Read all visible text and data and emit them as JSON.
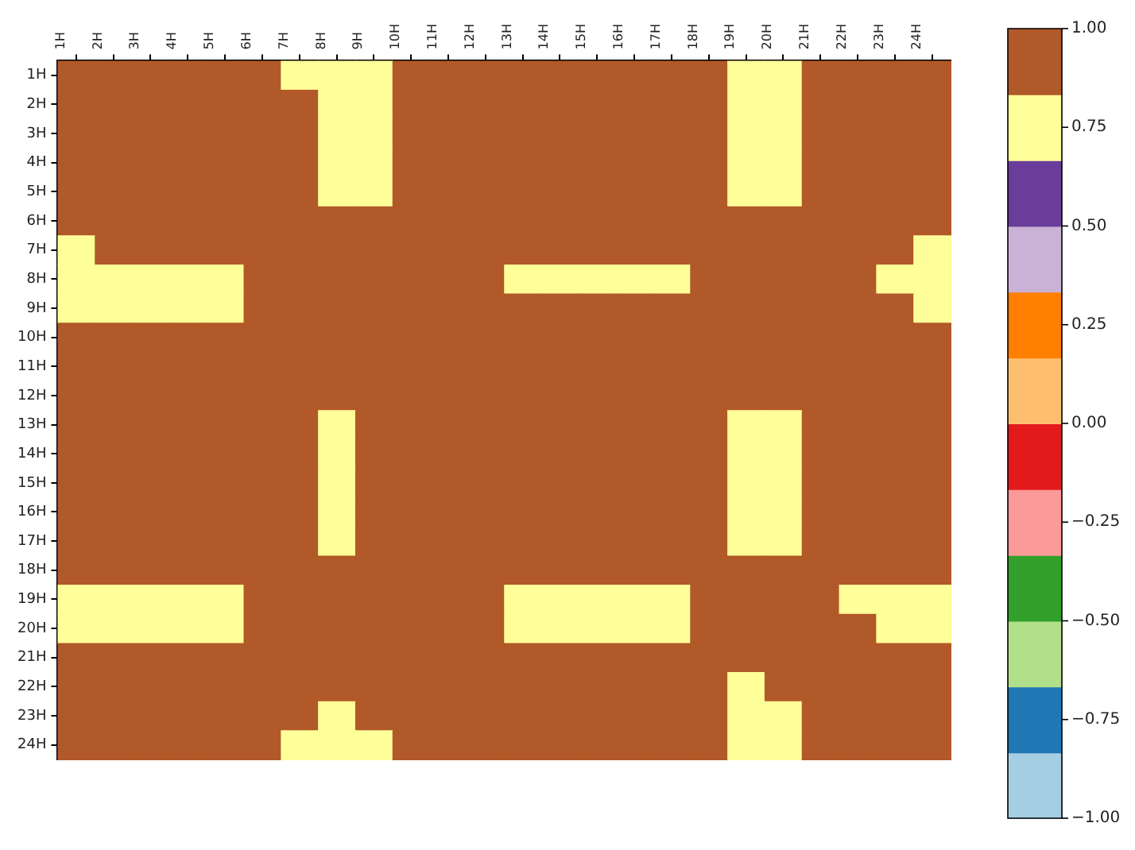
{
  "chart_data": {
    "type": "heatmap",
    "categories": [
      "1H",
      "2H",
      "3H",
      "4H",
      "5H",
      "6H",
      "7H",
      "8H",
      "9H",
      "10H",
      "11H",
      "12H",
      "13H",
      "14H",
      "15H",
      "16H",
      "17H",
      "18H",
      "19H",
      "20H",
      "21H",
      "22H",
      "23H",
      "24H"
    ],
    "y_categories": [
      "1H",
      "2H",
      "3H",
      "4H",
      "5H",
      "6H",
      "7H",
      "8H",
      "9H",
      "10H",
      "11H",
      "12H",
      "13H",
      "14H",
      "15H",
      "16H",
      "17H",
      "18H",
      "19H",
      "20H",
      "21H",
      "22H",
      "23H",
      "24H"
    ],
    "cells": [
      [
        1,
        0.9,
        0.9,
        0.9,
        0.9,
        0.9,
        0.75,
        0.75,
        0.75,
        0.9,
        0.9,
        0.9,
        0.9,
        0.9,
        0.9,
        0.9,
        0.9,
        0.9,
        0.75,
        0.75,
        0.9,
        0.9,
        0.9,
        0.9
      ],
      [
        0.9,
        1,
        0.9,
        0.9,
        0.9,
        0.9,
        0.9,
        0.75,
        0.75,
        0.9,
        0.9,
        0.9,
        0.9,
        0.9,
        0.9,
        0.9,
        0.9,
        0.9,
        0.75,
        0.75,
        0.9,
        0.9,
        0.9,
        0.9
      ],
      [
        0.9,
        0.9,
        1,
        0.9,
        0.9,
        0.9,
        0.9,
        0.75,
        0.75,
        0.9,
        0.9,
        0.9,
        0.9,
        0.9,
        0.9,
        0.9,
        0.9,
        0.9,
        0.75,
        0.75,
        0.9,
        0.9,
        0.9,
        0.9
      ],
      [
        0.9,
        0.9,
        0.9,
        1,
        0.9,
        0.9,
        0.9,
        0.75,
        0.75,
        0.9,
        0.9,
        0.9,
        0.9,
        0.9,
        0.9,
        0.9,
        0.9,
        0.9,
        0.75,
        0.75,
        0.9,
        0.9,
        0.9,
        0.9
      ],
      [
        0.9,
        0.9,
        0.9,
        0.9,
        1,
        0.9,
        0.9,
        0.75,
        0.75,
        0.9,
        0.9,
        0.9,
        0.9,
        0.9,
        0.9,
        0.9,
        0.9,
        0.9,
        0.75,
        0.75,
        0.9,
        0.9,
        0.9,
        0.9
      ],
      [
        0.9,
        0.9,
        0.9,
        0.9,
        0.9,
        1,
        0.9,
        0.9,
        0.9,
        0.9,
        0.9,
        0.9,
        0.9,
        0.9,
        0.9,
        0.9,
        0.9,
        0.9,
        0.9,
        0.9,
        0.9,
        0.9,
        0.9,
        0.9
      ],
      [
        0.75,
        0.9,
        0.9,
        0.9,
        0.9,
        0.9,
        1,
        0.9,
        0.9,
        0.9,
        0.9,
        0.9,
        0.9,
        0.9,
        0.9,
        0.9,
        0.9,
        0.9,
        0.9,
        0.9,
        0.9,
        0.9,
        0.9,
        0.75
      ],
      [
        0.75,
        0.75,
        0.75,
        0.75,
        0.75,
        0.9,
        0.9,
        1,
        0.9,
        0.9,
        0.9,
        0.9,
        0.75,
        0.75,
        0.75,
        0.75,
        0.75,
        0.9,
        0.9,
        0.9,
        0.9,
        0.9,
        0.75,
        0.75
      ],
      [
        0.75,
        0.75,
        0.75,
        0.75,
        0.75,
        0.9,
        0.9,
        0.9,
        1,
        0.9,
        0.9,
        0.9,
        0.9,
        0.9,
        0.9,
        0.9,
        0.9,
        0.9,
        0.9,
        0.9,
        0.9,
        0.9,
        0.9,
        0.75
      ],
      [
        0.9,
        0.9,
        0.9,
        0.9,
        0.9,
        0.9,
        0.9,
        0.9,
        0.9,
        1,
        0.9,
        0.9,
        0.9,
        0.9,
        0.9,
        0.9,
        0.9,
        0.9,
        0.9,
        0.9,
        0.9,
        0.9,
        0.9,
        0.9
      ],
      [
        0.9,
        0.9,
        0.9,
        0.9,
        0.9,
        0.9,
        0.9,
        0.9,
        0.9,
        0.9,
        1,
        0.9,
        0.9,
        0.9,
        0.9,
        0.9,
        0.9,
        0.9,
        0.9,
        0.9,
        0.9,
        0.9,
        0.9,
        0.9
      ],
      [
        0.9,
        0.9,
        0.9,
        0.9,
        0.9,
        0.9,
        0.9,
        0.9,
        0.9,
        0.9,
        0.9,
        1,
        0.9,
        0.9,
        0.9,
        0.9,
        0.9,
        0.9,
        0.9,
        0.9,
        0.9,
        0.9,
        0.9,
        0.9
      ],
      [
        0.9,
        0.9,
        0.9,
        0.9,
        0.9,
        0.9,
        0.9,
        0.75,
        0.9,
        0.9,
        0.9,
        0.9,
        1,
        0.9,
        0.9,
        0.9,
        0.9,
        0.9,
        0.75,
        0.75,
        0.9,
        0.9,
        0.9,
        0.9
      ],
      [
        0.9,
        0.9,
        0.9,
        0.9,
        0.9,
        0.9,
        0.9,
        0.75,
        0.9,
        0.9,
        0.9,
        0.9,
        0.9,
        1,
        0.9,
        0.9,
        0.9,
        0.9,
        0.75,
        0.75,
        0.9,
        0.9,
        0.9,
        0.9
      ],
      [
        0.9,
        0.9,
        0.9,
        0.9,
        0.9,
        0.9,
        0.9,
        0.75,
        0.9,
        0.9,
        0.9,
        0.9,
        0.9,
        0.9,
        1,
        0.9,
        0.9,
        0.9,
        0.75,
        0.75,
        0.9,
        0.9,
        0.9,
        0.9
      ],
      [
        0.9,
        0.9,
        0.9,
        0.9,
        0.9,
        0.9,
        0.9,
        0.75,
        0.9,
        0.9,
        0.9,
        0.9,
        0.9,
        0.9,
        0.9,
        1,
        0.9,
        0.9,
        0.75,
        0.75,
        0.9,
        0.9,
        0.9,
        0.9
      ],
      [
        0.9,
        0.9,
        0.9,
        0.9,
        0.9,
        0.9,
        0.9,
        0.75,
        0.9,
        0.9,
        0.9,
        0.9,
        0.9,
        0.9,
        0.9,
        0.9,
        1,
        0.9,
        0.75,
        0.75,
        0.9,
        0.9,
        0.9,
        0.9
      ],
      [
        0.9,
        0.9,
        0.9,
        0.9,
        0.9,
        0.9,
        0.9,
        0.9,
        0.9,
        0.9,
        0.9,
        0.9,
        0.9,
        0.9,
        0.9,
        0.9,
        0.9,
        1,
        0.9,
        0.9,
        0.9,
        0.9,
        0.9,
        0.9
      ],
      [
        0.75,
        0.75,
        0.75,
        0.75,
        0.75,
        0.9,
        0.9,
        0.9,
        0.9,
        0.9,
        0.9,
        0.9,
        0.75,
        0.75,
        0.75,
        0.75,
        0.75,
        0.9,
        1,
        0.9,
        0.9,
        0.75,
        0.75,
        0.75
      ],
      [
        0.75,
        0.75,
        0.75,
        0.75,
        0.75,
        0.9,
        0.9,
        0.9,
        0.9,
        0.9,
        0.9,
        0.9,
        0.75,
        0.75,
        0.75,
        0.75,
        0.75,
        0.9,
        0.9,
        1,
        0.9,
        0.9,
        0.75,
        0.75
      ],
      [
        0.9,
        0.9,
        0.9,
        0.9,
        0.9,
        0.9,
        0.9,
        0.9,
        0.9,
        0.9,
        0.9,
        0.9,
        0.9,
        0.9,
        0.9,
        0.9,
        0.9,
        0.9,
        0.9,
        0.9,
        1,
        0.9,
        0.9,
        0.9
      ],
      [
        0.9,
        0.9,
        0.9,
        0.9,
        0.9,
        0.9,
        0.9,
        0.9,
        0.9,
        0.9,
        0.9,
        0.9,
        0.9,
        0.9,
        0.9,
        0.9,
        0.9,
        0.9,
        0.75,
        0.9,
        0.9,
        1,
        0.9,
        0.9
      ],
      [
        0.9,
        0.9,
        0.9,
        0.9,
        0.9,
        0.9,
        0.9,
        0.75,
        0.9,
        0.9,
        0.9,
        0.9,
        0.9,
        0.9,
        0.9,
        0.9,
        0.9,
        0.9,
        0.75,
        0.75,
        0.9,
        0.9,
        1,
        0.9
      ],
      [
        0.9,
        0.9,
        0.9,
        0.9,
        0.9,
        0.9,
        0.75,
        0.75,
        0.75,
        0.9,
        0.9,
        0.9,
        0.9,
        0.9,
        0.9,
        0.9,
        0.9,
        0.9,
        0.75,
        0.75,
        0.9,
        0.9,
        0.9,
        1
      ]
    ],
    "colors": [
      "#a6cee3",
      "#1f78b4",
      "#b2df8a",
      "#33a02c",
      "#fb9a99",
      "#e31a1c",
      "#fdbf6f",
      "#ff7f00",
      "#cab2d6",
      "#6a3d9a",
      "#ffff99",
      "#b15928"
    ],
    "clim": [
      -1,
      1
    ],
    "cticks": [
      {
        "value": 1,
        "label": "1.00"
      },
      {
        "value": 0.75,
        "label": "0.75"
      },
      {
        "value": 0.5,
        "label": "0.50"
      },
      {
        "value": 0.25,
        "label": "0.25"
      },
      {
        "value": 0,
        "label": "0.00"
      },
      {
        "value": -0.25,
        "label": "−0.25"
      },
      {
        "value": -0.5,
        "label": "−0.50"
      },
      {
        "value": -0.75,
        "label": "−0.75"
      },
      {
        "value": -1,
        "label": "−1.00"
      }
    ]
  }
}
